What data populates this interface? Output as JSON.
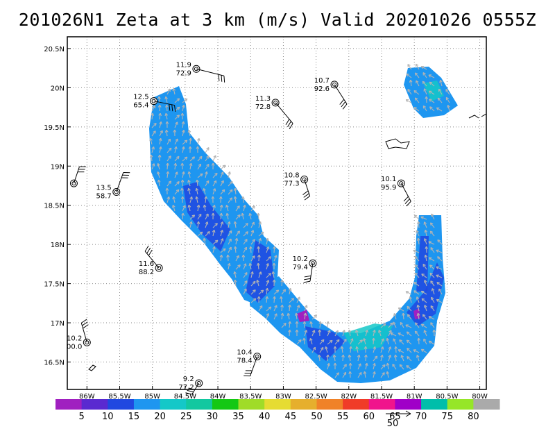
{
  "title": "201026N1 Zeta at 3 km (m/s) Valid 20201026 0555Z",
  "map": {
    "lon_range": [
      -86.3,
      -79.9
    ],
    "lat_range": [
      16.15,
      20.65
    ],
    "lon_ticks": [
      -86,
      -85.5,
      -85,
      -84.5,
      -84,
      -83.5,
      -83,
      -82.5,
      -82,
      -81.5,
      -81,
      -80.5,
      -80
    ],
    "lon_labels": [
      "86W",
      "85.5W",
      "85W",
      "84.5W",
      "84W",
      "83.5W",
      "83W",
      "82.5W",
      "82W",
      "81.5W",
      "81W",
      "80.5W",
      "80W"
    ],
    "lat_ticks": [
      16.5,
      17,
      17.5,
      18,
      18.5,
      19,
      19.5,
      20,
      20.5
    ],
    "lat_labels": [
      "16.5N",
      "17N",
      "17.5N",
      "18N",
      "18.5N",
      "19N",
      "19.5N",
      "20N",
      "20.5N"
    ],
    "grid": "dotted"
  },
  "stations": [
    {
      "lon": -84.98,
      "lat": 19.83,
      "top": "12.5",
      "bottom": "65.4"
    },
    {
      "lon": -84.33,
      "lat": 20.24,
      "top": "11.9",
      "bottom": "72.9"
    },
    {
      "lon": -83.12,
      "lat": 19.81,
      "top": "11.3",
      "bottom": "72.8"
    },
    {
      "lon": -82.22,
      "lat": 20.04,
      "top": "10.7",
      "bottom": "92.6"
    },
    {
      "lon": -86.2,
      "lat": 18.78,
      "top": "",
      "bottom": ""
    },
    {
      "lon": -85.55,
      "lat": 18.67,
      "top": "13.5",
      "bottom": "58.7"
    },
    {
      "lon": -82.68,
      "lat": 18.83,
      "top": "10.8",
      "bottom": "77.3"
    },
    {
      "lon": -81.2,
      "lat": 18.78,
      "top": "10.1",
      "bottom": "95.9"
    },
    {
      "lon": -84.9,
      "lat": 17.7,
      "top": "11.6",
      "bottom": "88.2"
    },
    {
      "lon": -82.55,
      "lat": 17.76,
      "top": "10.2",
      "bottom": "79.4"
    },
    {
      "lon": -86.0,
      "lat": 16.75,
      "top": "10.2",
      "bottom": "00.0"
    },
    {
      "lon": -83.4,
      "lat": 16.57,
      "top": "10.4",
      "bottom": "78.4"
    },
    {
      "lon": -84.29,
      "lat": 16.23,
      "top": "9.2",
      "bottom": "77.2"
    }
  ],
  "colorbar": {
    "labels": [
      "5",
      "10",
      "15",
      "20",
      "25",
      "30",
      "35",
      "40",
      "45",
      "50",
      "55",
      "60",
      "65",
      "70",
      "75",
      "80"
    ],
    "colors": [
      "#a020c0",
      "#5a2ad0",
      "#2048e0",
      "#1e96f0",
      "#14c8c8",
      "#12c8a0",
      "#14c814",
      "#a0dc28",
      "#e6dc32",
      "#e6af2d",
      "#f08228",
      "#f03c28",
      "#f0148c",
      "#a000c8",
      "#00beaa",
      "#96e628",
      "#aaaaaa"
    ]
  },
  "vector_reference": {
    "label": "50"
  }
}
